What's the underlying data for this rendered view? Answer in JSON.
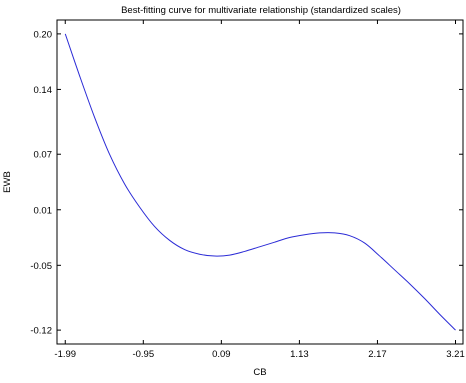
{
  "chart_data": {
    "type": "line",
    "title": "Best-fitting curve for multivariate relationship (standardized scales)",
    "xlabel": "CB",
    "ylabel": "EWB",
    "xlim": [
      -2.1,
      3.31
    ],
    "ylim": [
      -0.135,
      0.215
    ],
    "x_ticks": [
      "-1.99",
      "-0.95",
      "0.09",
      "1.13",
      "2.17",
      "3.21"
    ],
    "y_ticks": [
      "0.20",
      "0.14",
      "0.07",
      "0.01",
      "-0.05",
      "-0.12"
    ],
    "grid": false,
    "legend": "none",
    "line_color": "#2b2bd6",
    "series": [
      {
        "x": [
          -1.99,
          -1.8,
          -1.6,
          -1.4,
          -1.2,
          -1.0,
          -0.8,
          -0.6,
          -0.4,
          -0.2,
          0.0,
          0.2,
          0.4,
          0.6,
          0.8,
          1.0,
          1.2,
          1.4,
          1.6,
          1.8,
          2.0,
          2.2,
          2.4,
          2.6,
          2.8,
          3.0,
          3.21
        ],
        "y": [
          0.2,
          0.155,
          0.11,
          0.07,
          0.038,
          0.013,
          -0.008,
          -0.023,
          -0.033,
          -0.038,
          -0.04,
          -0.039,
          -0.035,
          -0.03,
          -0.025,
          -0.02,
          -0.017,
          -0.015,
          -0.015,
          -0.018,
          -0.026,
          -0.04,
          -0.055,
          -0.07,
          -0.086,
          -0.103,
          -0.12
        ]
      }
    ]
  }
}
